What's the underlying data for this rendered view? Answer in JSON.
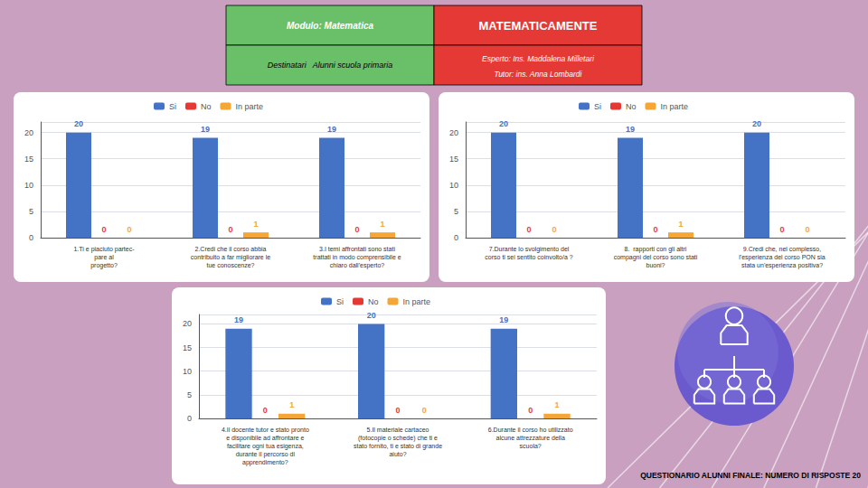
{
  "chart_data": [
    {
      "type": "bar",
      "categories": [
        "1.Ti e piaciuto partec-\npare al\nprogetto?",
        "2.Credi che il corso abbia\ncontribuito a far migliorare le\ntue conoscenze?",
        "3.I temi affrontati sono stati\ntrattati in modo comprensibile e\nchiaro dall'esperto?"
      ],
      "series": [
        {
          "name": "Si",
          "color": "#4472c4",
          "values": [
            20,
            19,
            19
          ]
        },
        {
          "name": "No",
          "color": "#e53935",
          "values": [
            0,
            0,
            0
          ]
        },
        {
          "name": "In parte",
          "color": "#f4a636",
          "values": [
            0,
            1,
            1
          ]
        }
      ],
      "ylim": [
        0,
        22
      ],
      "yticks": [
        0,
        5,
        10,
        15,
        20
      ],
      "grid": true,
      "legend": "top",
      "data_labels": true,
      "annotations": [
        "Modulo: Matematica",
        "MATEMATICAMENTE",
        "Destinatari   Alunni scuola primaria",
        "Esperto: Ins. Maddalena Milletari",
        "Tutor: ins. Anna Lombardi",
        "QUESTIONARIO ALUNNI FINALE: NUMERO DI RISPOSTE 20"
      ]
    },
    {
      "type": "bar",
      "categories": [
        "7.Durante lo svolgimento del\ncorso ti sei sentito coinvolto/a ?",
        "8.  rapporti con gli altri\ncompagni del corso sono stati\nbuoni?",
        "9.Credi che, nel complesso,\nl'esperienza del corso PON sia\nstata un'esperienza positiva?"
      ],
      "series": [
        {
          "name": "Si",
          "color": "#4472c4",
          "values": [
            20,
            19,
            20
          ]
        },
        {
          "name": "No",
          "color": "#e53935",
          "values": [
            0,
            0,
            0
          ]
        },
        {
          "name": "In parte",
          "color": "#f4a636",
          "values": [
            0,
            1,
            0
          ]
        }
      ],
      "ylim": [
        0,
        22
      ],
      "yticks": [
        0,
        5,
        10,
        15,
        20
      ],
      "grid": true,
      "legend": "top",
      "data_labels": true
    },
    {
      "type": "bar",
      "categories": [
        "4.Il docente tutor e stato pronto\ne disponibile ad affrontare e\nfacilitare ogni tua esigenza,\ndurante il percorso di\napprendimento?",
        "5.Il materiale cartaceo\n(fotocopie o schede) che ti e\nstato fornito, ti e stato di grande\naiuto?",
        "6.Durante il corso ho utilizzato\nalcune attrezzature della\nscuola?"
      ],
      "series": [
        {
          "name": "Si",
          "color": "#4472c4",
          "values": [
            19,
            20,
            19
          ]
        },
        {
          "name": "No",
          "color": "#e53935",
          "values": [
            0,
            0,
            0
          ]
        },
        {
          "name": "In parte",
          "color": "#f4a636",
          "values": [
            1,
            0,
            1
          ]
        }
      ],
      "ylim": [
        0,
        22
      ],
      "yticks": [
        0,
        5,
        10,
        15,
        20
      ],
      "grid": true,
      "legend": "top",
      "data_labels": true
    }
  ]
}
